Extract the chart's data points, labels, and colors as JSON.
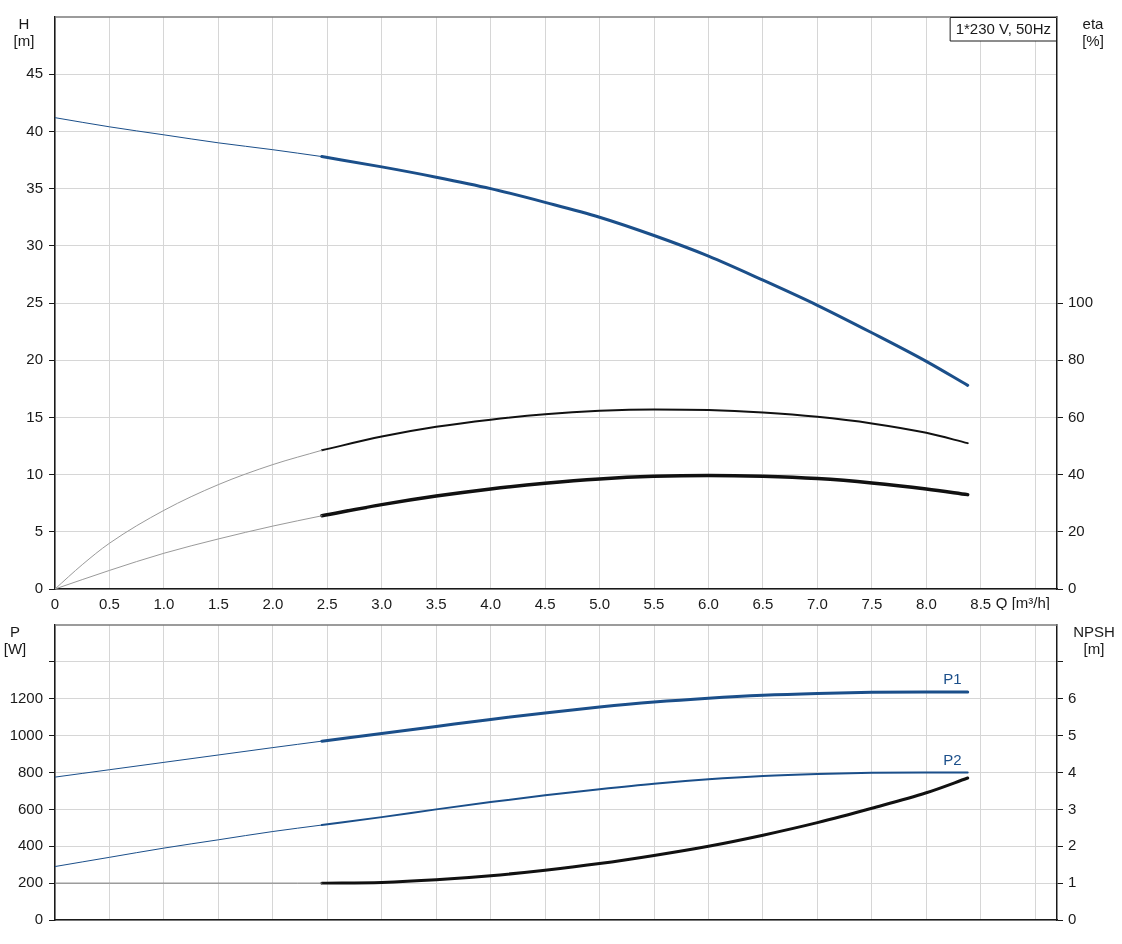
{
  "chart_data": [
    {
      "type": "line",
      "xlabel": "Q [m³/h]",
      "ylabel": "H [m]",
      "y2label": "eta [%]",
      "annotations": [
        "1*230 V, 50Hz"
      ],
      "xlim": [
        0,
        9.2
      ],
      "xticks": [
        0,
        0.5,
        {
          "value": 1,
          "label": "1.0"
        },
        1.5,
        {
          "value": 2,
          "label": "2.0"
        },
        2.5,
        {
          "value": 3,
          "label": "3.0"
        },
        3.5,
        {
          "value": 4,
          "label": "4.0"
        },
        4.5,
        {
          "value": 5,
          "label": "5.0"
        },
        5.5,
        {
          "value": 6,
          "label": "6.0"
        },
        6.5,
        {
          "value": 7,
          "label": "7.0"
        },
        7.5,
        {
          "value": 8,
          "label": "8.0"
        },
        8.5,
        {
          "value": 9,
          "label": null
        }
      ],
      "ylim": [
        0,
        50
      ],
      "yticks": [
        0,
        5,
        10,
        15,
        20,
        25,
        30,
        35,
        40,
        45
      ],
      "y2lim": [
        0,
        200
      ],
      "y2ticks": [
        0,
        20,
        40,
        60,
        80,
        100
      ],
      "grid": true,
      "series": [
        {
          "color": "#1b4f8a",
          "x": [
            0,
            0.5,
            1,
            1.5,
            2,
            2.45
          ],
          "values": [
            41.2,
            40.4,
            39.7,
            39,
            38.4,
            37.8
          ]
        },
        {
          "color": "#1b4f8a",
          "x": [
            2.45,
            3,
            3.5,
            4,
            4.5,
            5,
            5.5,
            6,
            6.5,
            7,
            7.5,
            8,
            8.38
          ],
          "values": [
            37.8,
            36.9,
            36,
            35,
            33.8,
            32.5,
            30.9,
            29.1,
            27,
            24.8,
            22.4,
            19.9,
            17.8
          ]
        },
        {
          "color": "#9a9a9a",
          "axis": "y2",
          "x": [
            0,
            0.25,
            0.5,
            1,
            1.5,
            2,
            2.45
          ],
          "values": [
            0,
            8.5,
            16,
            27.5,
            36.5,
            43.5,
            48.5
          ]
        },
        {
          "color": "#111111",
          "axis": "y2",
          "x": [
            2.45,
            3,
            3.5,
            4,
            4.5,
            5,
            5.5,
            6,
            6.5,
            7,
            7.5,
            8,
            8.38
          ],
          "values": [
            48.5,
            53.3,
            56.7,
            59.2,
            61.1,
            62.3,
            62.8,
            62.6,
            61.7,
            60.2,
            57.9,
            54.6,
            51
          ]
        },
        {
          "color": "#9a9a9a",
          "axis": "y2",
          "x": [
            0,
            0.5,
            1,
            1.5,
            2,
            2.45
          ],
          "values": [
            0,
            6.5,
            12.5,
            17.5,
            22,
            25.6
          ]
        },
        {
          "color": "#111111",
          "axis": "y2",
          "x": [
            2.45,
            3,
            3.5,
            4,
            4.5,
            5,
            5.5,
            6,
            6.5,
            7,
            7.5,
            8,
            8.38
          ],
          "values": [
            25.6,
            29.5,
            32.5,
            35,
            37,
            38.5,
            39.4,
            39.7,
            39.4,
            38.6,
            37.1,
            35,
            33
          ]
        }
      ]
    },
    {
      "type": "line",
      "ylabel": "P [W]",
      "y2label": "NPSH [m]",
      "tick_labels": "y",
      "xlim": [
        0,
        9.2
      ],
      "xticks": [
        0,
        0.5,
        1,
        1.5,
        2,
        2.5,
        3,
        3.5,
        4,
        4.5,
        5,
        5.5,
        6,
        6.5,
        7,
        7.5,
        8,
        8.5,
        9
      ],
      "ylim": [
        0,
        1600
      ],
      "yticks": [
        0,
        200,
        400,
        600,
        800,
        1000,
        1200,
        {
          "value": 1400,
          "label": null
        }
      ],
      "y2lim": [
        0,
        8
      ],
      "y2ticks": [
        0,
        1,
        2,
        3,
        4,
        5,
        6,
        {
          "value": 7,
          "label": null
        }
      ],
      "grid": true,
      "series": [
        {
          "color": "#1b4f8a",
          "x": [
            0,
            0.5,
            1,
            1.5,
            2,
            2.45
          ],
          "values": [
            775,
            815,
            855,
            895,
            935,
            970
          ]
        },
        {
          "name": "P1",
          "color": "#1b4f8a",
          "x": [
            2.45,
            3,
            3.5,
            4,
            4.5,
            5,
            5.5,
            6,
            6.5,
            7,
            7.5,
            8,
            8.38
          ],
          "values": [
            970,
            1012,
            1050,
            1088,
            1123,
            1155,
            1182,
            1203,
            1219,
            1229,
            1235,
            1237,
            1237
          ]
        },
        {
          "color": "#1b4f8a",
          "x": [
            0,
            0.5,
            1,
            1.5,
            2,
            2.45
          ],
          "values": [
            290,
            340,
            390,
            435,
            480,
            515
          ]
        },
        {
          "name": "P2",
          "color": "#1b4f8a",
          "x": [
            2.45,
            3,
            3.5,
            4,
            4.5,
            5,
            5.5,
            6,
            6.5,
            7,
            7.5,
            8,
            8.38
          ],
          "values": [
            515,
            558,
            600,
            640,
            676,
            709,
            739,
            763,
            781,
            792,
            798,
            800,
            800
          ]
        },
        {
          "color": "#7a7a7a",
          "axis": "y2",
          "x": [
            0,
            1,
            2,
            2.45
          ],
          "values": [
            1,
            1,
            1,
            1
          ]
        },
        {
          "color": "#111111",
          "axis": "y2",
          "x": [
            2.45,
            3,
            3.5,
            4,
            4.5,
            5,
            5.5,
            6,
            6.5,
            7,
            7.5,
            8,
            8.38
          ],
          "values": [
            1,
            1.02,
            1.09,
            1.2,
            1.35,
            1.53,
            1.75,
            2,
            2.3,
            2.64,
            3.03,
            3.45,
            3.85
          ]
        }
      ]
    }
  ]
}
